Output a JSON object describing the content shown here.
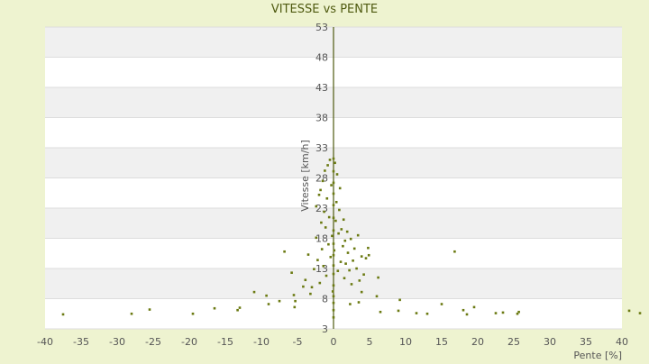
{
  "chart_data": {
    "type": "scatter",
    "title": "VITESSE vs PENTE",
    "xlabel": "Pente [%]",
    "ylabel": "Vitesse [km/h]",
    "xlim": [
      -40,
      40
    ],
    "ylim": [
      3,
      53
    ],
    "x_ticks": [
      -40,
      -35,
      -30,
      -25,
      -20,
      -15,
      -10,
      -5,
      0,
      5,
      10,
      15,
      20,
      25,
      30,
      35,
      40
    ],
    "y_ticks": [
      3,
      8,
      13,
      18,
      23,
      28,
      33,
      38,
      43,
      48,
      53
    ],
    "grid": true,
    "legend": "none",
    "colors": {
      "background": "#eef3d0",
      "plot_band_light": "#ffffff",
      "plot_band_dark": "#f0f0f0",
      "gridline": "#dddddd",
      "axis": "#4f5a10",
      "marker": "#6b7a12",
      "title": "#4f5a10",
      "text": "#555555"
    },
    "series": [
      {
        "points": [
          [
            -37.5,
            5.4
          ],
          [
            -28,
            5.5
          ],
          [
            -25.5,
            6.2
          ],
          [
            -19.5,
            5.5
          ],
          [
            -16.5,
            6.4
          ],
          [
            -13.3,
            6.1
          ],
          [
            -13,
            6.5
          ],
          [
            -11,
            9.1
          ],
          [
            -9.3,
            8.5
          ],
          [
            -9,
            7.1
          ],
          [
            -7.5,
            7.6
          ],
          [
            -6.8,
            15.8
          ],
          [
            -5.8,
            12.3
          ],
          [
            -5.5,
            8.6
          ],
          [
            -5.3,
            7.6
          ],
          [
            -5.4,
            6.6
          ],
          [
            -4.2,
            10.0
          ],
          [
            -3.9,
            11.1
          ],
          [
            -3.5,
            15.3
          ],
          [
            -3.2,
            8.8
          ],
          [
            -3.0,
            9.9
          ],
          [
            -2.7,
            12.9
          ],
          [
            -2.4,
            18.1
          ],
          [
            -2.4,
            23.3
          ],
          [
            -2.2,
            14.4
          ],
          [
            -2.0,
            25.2
          ],
          [
            -1.9,
            10.6
          ],
          [
            -1.8,
            26.0
          ],
          [
            -1.7,
            20.6
          ],
          [
            -1.6,
            16.2
          ],
          [
            -1.5,
            27.5
          ],
          [
            -1.4,
            13.4
          ],
          [
            -1.3,
            22.4
          ],
          [
            -1.2,
            29.2
          ],
          [
            -1.1,
            19.8
          ],
          [
            -1.0,
            11.8
          ],
          [
            -0.9,
            24.6
          ],
          [
            -0.8,
            30.1
          ],
          [
            -0.7,
            17.0
          ],
          [
            -0.6,
            21.5
          ],
          [
            -0.5,
            31.0
          ],
          [
            -0.4,
            14.9
          ],
          [
            -0.3,
            26.8
          ],
          [
            -0.2,
            18.4
          ],
          [
            -0.1,
            9.2
          ],
          [
            0,
            4.9
          ],
          [
            0,
            6.1
          ],
          [
            0,
            7.3
          ],
          [
            0,
            8.4
          ],
          [
            0,
            10.2
          ],
          [
            0,
            12.1
          ],
          [
            0,
            13.5
          ],
          [
            0,
            15.2
          ],
          [
            0,
            17.1
          ],
          [
            0,
            19.3
          ],
          [
            0,
            21.4
          ],
          [
            0,
            23.5
          ],
          [
            0,
            25.4
          ],
          [
            0,
            27.2
          ],
          [
            0,
            29.1
          ],
          [
            0,
            31.2
          ],
          [
            0.1,
            16.0
          ],
          [
            0.2,
            30.5
          ],
          [
            0.3,
            20.9
          ],
          [
            0.4,
            24.0
          ],
          [
            0.5,
            28.6
          ],
          [
            0.6,
            12.6
          ],
          [
            0.7,
            18.8
          ],
          [
            0.8,
            22.7
          ],
          [
            0.9,
            26.3
          ],
          [
            1.0,
            14.1
          ],
          [
            1.1,
            19.5
          ],
          [
            1.3,
            16.7
          ],
          [
            1.4,
            21.1
          ],
          [
            1.5,
            11.4
          ],
          [
            1.6,
            17.6
          ],
          [
            1.7,
            13.8
          ],
          [
            1.9,
            19.1
          ],
          [
            2.0,
            15.6
          ],
          [
            2.2,
            12.7
          ],
          [
            2.4,
            17.9
          ],
          [
            2.5,
            10.4
          ],
          [
            2.7,
            14.3
          ],
          [
            2.9,
            16.3
          ],
          [
            3.2,
            13.0
          ],
          [
            3.4,
            18.5
          ],
          [
            3.6,
            11.0
          ],
          [
            3.9,
            15.0
          ],
          [
            4.2,
            12.0
          ],
          [
            4.5,
            14.7
          ],
          [
            4.8,
            16.4
          ],
          [
            4.9,
            15.2
          ],
          [
            2.3,
            7.1
          ],
          [
            3.5,
            7.4
          ],
          [
            6.0,
            8.4
          ],
          [
            6.2,
            11.5
          ],
          [
            3.9,
            9.1
          ],
          [
            6.5,
            5.8
          ],
          [
            9.0,
            6.0
          ],
          [
            9.2,
            7.8
          ],
          [
            11.5,
            5.6
          ],
          [
            13.0,
            5.5
          ],
          [
            15.0,
            7.1
          ],
          [
            16.8,
            15.8
          ],
          [
            18.0,
            6.1
          ],
          [
            18.5,
            5.4
          ],
          [
            19.5,
            6.6
          ],
          [
            22.5,
            5.6
          ],
          [
            23.5,
            5.7
          ],
          [
            25.5,
            5.5
          ],
          [
            25.7,
            5.8
          ],
          [
            41.0,
            6.0
          ],
          [
            42.5,
            5.6
          ]
        ]
      }
    ]
  }
}
